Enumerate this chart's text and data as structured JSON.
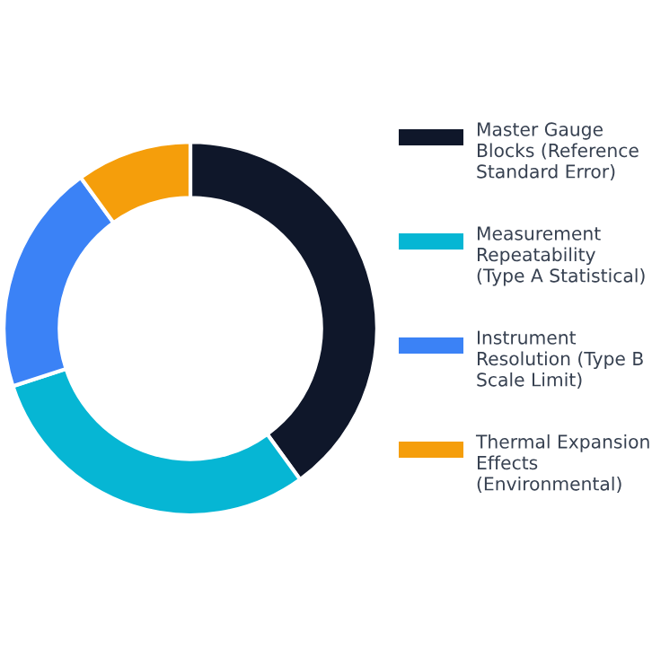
{
  "chart_data": {
    "type": "donut",
    "categories": [
      "Master Gauge Blocks (Reference Standard Error)",
      "Measurement Repeatability (Type A Statistical)",
      "Instrument Resolution (Type B Scale Limit)",
      "Thermal Expansion Effects (Environmental)"
    ],
    "values": [
      40,
      30,
      20,
      10
    ],
    "colors": [
      "#0f172a",
      "#06b6d4",
      "#3b82f6",
      "#f59e0b"
    ],
    "legend": "right"
  }
}
